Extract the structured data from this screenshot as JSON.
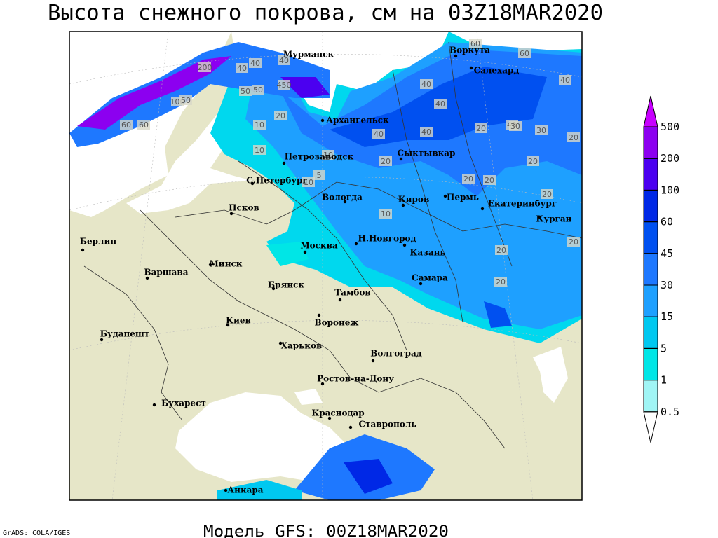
{
  "header": {
    "title": "Высота снежного покрова, см на 03Z18MAR2020"
  },
  "cities": [
    "Мурманск",
    "Воркута",
    "Салехард",
    "Архангельск",
    "Петрозаводск",
    "Сыктывкар",
    "С.Петербург",
    "Вологда",
    "Киров",
    "Пермь",
    "Екатеринбург",
    "Курган",
    "Псков",
    "Берлин",
    "Н.Новгород",
    "Москва",
    "Минск",
    "Казань",
    "Варшава",
    "Самара",
    "Брянск",
    "Тамбов",
    "Киев",
    "Воронеж",
    "Будапешт",
    "Харьков",
    "Волгоград",
    "Ростов-на-Дону",
    "Бухарест",
    "Краснодар",
    "Ставрополь",
    "Анкара"
  ],
  "contour_labels": [
    60,
    60,
    200,
    40,
    40,
    40,
    60,
    40,
    40,
    100,
    50,
    60,
    50,
    50,
    450,
    20,
    10,
    40,
    40,
    40,
    20,
    30,
    30,
    20,
    10,
    20,
    10,
    5,
    10,
    20,
    20,
    20,
    20,
    40,
    10,
    20,
    20,
    20
  ],
  "legend": {
    "levels": [
      0.5,
      1,
      5,
      15,
      30,
      45,
      60,
      100,
      200,
      500
    ],
    "colors": [
      "#ffffff",
      "#a0f5f5",
      "#00e6e6",
      "#00c8f0",
      "#1ea0ff",
      "#1e78ff",
      "#0050f0",
      "#0028e6",
      "#4b00f0",
      "#8c00f0",
      "#c800ff"
    ]
  },
  "footer": {
    "model": "Модель GFS: 00Z18MAR2020",
    "credit": "GrADS: COLA/IGES"
  }
}
